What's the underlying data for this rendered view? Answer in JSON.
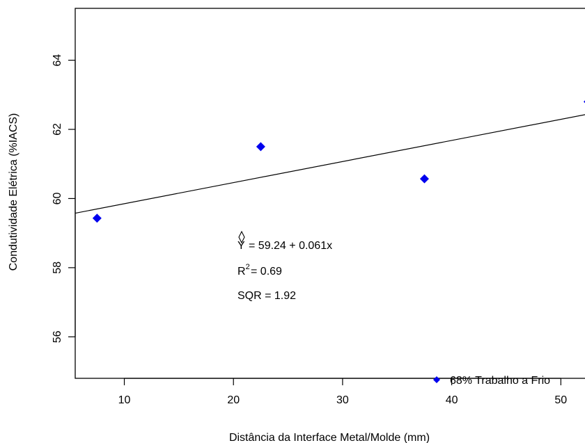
{
  "chart_data": {
    "type": "scatter",
    "title": "",
    "xlabel": "Distância da Interface Metal/Molde (mm)",
    "ylabel": "Condutividade Elétrica (%IACS)",
    "xlim": [
      5.5,
      54
    ],
    "ylim": [
      54.8,
      65.5
    ],
    "x_ticks": [
      10,
      20,
      30,
      40,
      50
    ],
    "y_ticks": [
      56,
      58,
      60,
      62,
      64
    ],
    "grid": false,
    "legend_position": "bottom-right",
    "series": [
      {
        "name": "68% Trabalho a Frio",
        "color": "#0000ee",
        "marker": "diamond",
        "points": [
          {
            "x": 7.5,
            "y": 59.43
          },
          {
            "x": 22.5,
            "y": 61.5
          },
          {
            "x": 37.5,
            "y": 60.57
          },
          {
            "x": 52.5,
            "y": 62.8
          }
        ]
      }
    ],
    "fit": {
      "intercept": 59.24,
      "slope": 0.061
    },
    "annotations": {
      "equation": "= 59.24 + 0.061x",
      "r2": "= 0.69",
      "sqr": "SQR = 1.92"
    }
  }
}
